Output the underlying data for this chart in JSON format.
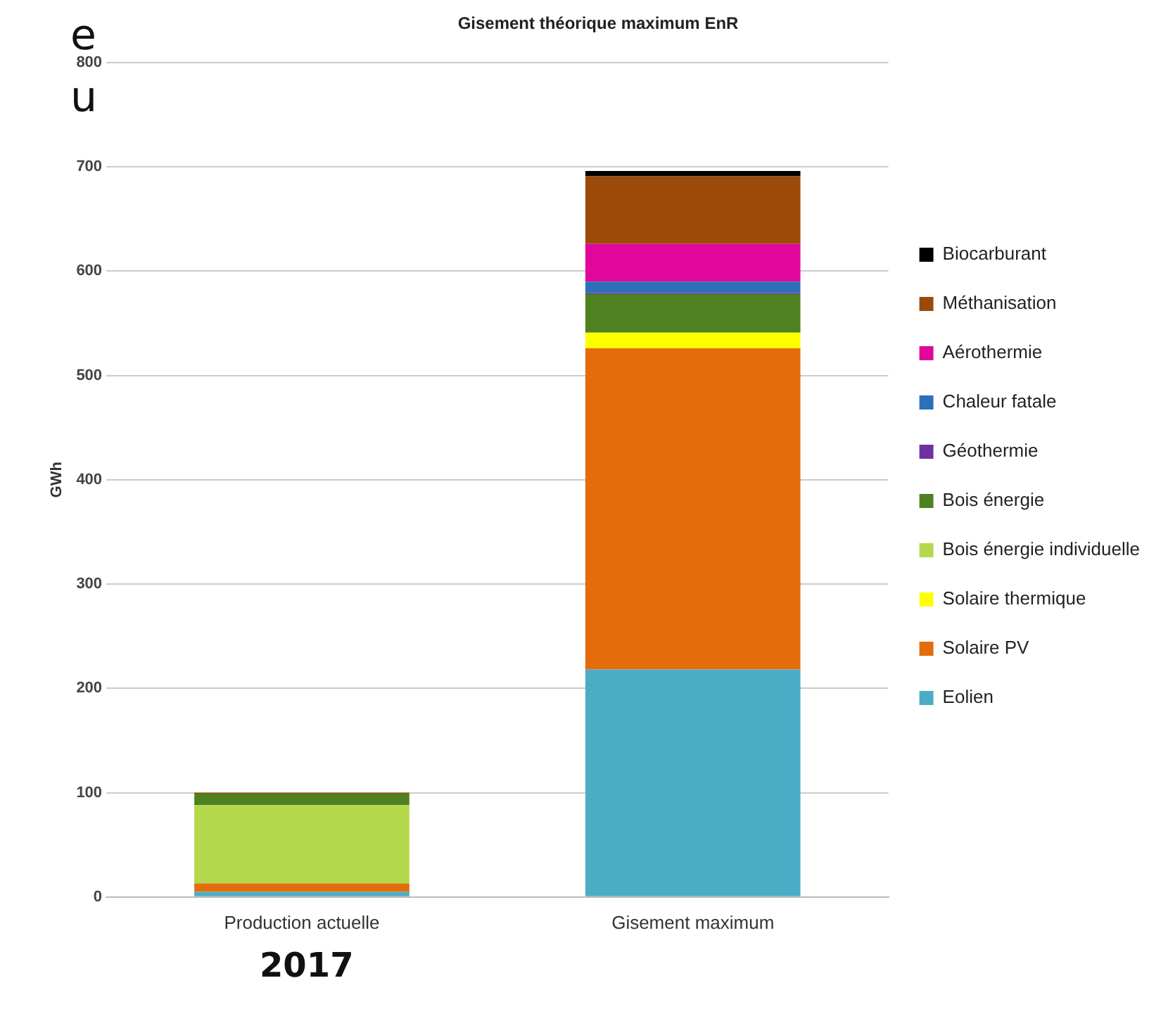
{
  "chart_data": {
    "type": "bar",
    "title": "Gisement théorique maximum EnR",
    "ylabel": "GWh",
    "stacked": true,
    "categories": [
      "Production actuelle",
      "Gisement maximum"
    ],
    "series": [
      {
        "name": "Eolien",
        "color": "#4bacc6",
        "values": [
          5,
          218
        ]
      },
      {
        "name": "Solaire PV",
        "color": "#e46c0a",
        "values": [
          8,
          308
        ]
      },
      {
        "name": "Solaire thermique",
        "color": "#ffff00",
        "values": [
          0,
          15
        ]
      },
      {
        "name": "Bois énergie individuelle",
        "color": "#b3d84c",
        "values": [
          75,
          0
        ]
      },
      {
        "name": "Bois énergie",
        "color": "#4f8120",
        "values": [
          11,
          37
        ]
      },
      {
        "name": "Géothermie",
        "color": "#7030a0",
        "values": [
          0,
          1
        ]
      },
      {
        "name": "Chaleur fatale",
        "color": "#2e6fba",
        "values": [
          0,
          11
        ]
      },
      {
        "name": "Aérothermie",
        "color": "#e0079a",
        "values": [
          0,
          36
        ]
      },
      {
        "name": "Méthanisation",
        "color": "#9c4a0a",
        "values": [
          1,
          65
        ]
      },
      {
        "name": "Biocarburant",
        "color": "#000000",
        "values": [
          0,
          5
        ]
      }
    ],
    "ylim": [
      0,
      800
    ],
    "yticks": [
      0,
      100,
      200,
      300,
      400,
      500,
      600,
      700,
      800
    ],
    "grid": "y",
    "legend": "right",
    "annotations": [
      "e",
      "u",
      "2017"
    ]
  }
}
